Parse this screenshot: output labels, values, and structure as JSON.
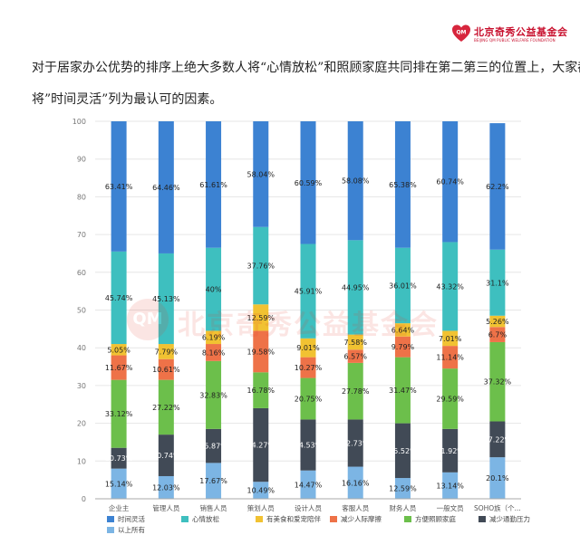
{
  "header": {
    "logo_badge": "QM",
    "logo_name": "北京奇秀公益基金会",
    "logo_subtitle": "BEIJING QM PUBLIC WELFARE FOUNDATION"
  },
  "article": {
    "line1": "对于居家办公优势的排序上绝大多数人将“心情放松”和照顾家庭共同排在第二第三的位置上，大家都",
    "line2": "将”时间灵活”列为最认可的因素。"
  },
  "watermark": {
    "badge": "QM",
    "text": "北京奇秀公益基金会"
  },
  "colors": {
    "time": "#3c82d2",
    "relax": "#3ebfbf",
    "food": "#f1c232",
    "commute_less": "#ee7248",
    "family": "#6cbf4b",
    "pressure": "#414a56",
    "all": "#7cb5e4",
    "axis": "#aaaaaa",
    "grid": "#e6e6e6"
  },
  "chart_data": {
    "type": "bar",
    "stacked": true,
    "ylim": [
      0,
      100
    ],
    "yticks": [
      0,
      10,
      20,
      30,
      40,
      50,
      60,
      70,
      80,
      90,
      100
    ],
    "categories": [
      "企业主",
      "管理人员",
      "销售人员",
      "策划人员",
      "设计人员",
      "客服人员",
      "财务人员",
      "一般文员",
      "SOHO族（个..."
    ],
    "series": [
      {
        "name": "以上所有",
        "key": "all",
        "values": [
          8,
          6,
          9.5,
          4.5,
          7.5,
          8.5,
          5.5,
          7,
          11
        ],
        "labels": [
          "15.14%",
          "12.03%",
          "17.67%",
          "10.49%",
          "14.47%",
          "16.16%",
          "12.59%",
          "13.14%",
          "20.1%"
        ]
      },
      {
        "name": "减少通勤压力",
        "key": "pressure",
        "values": [
          5.5,
          11,
          9,
          19.5,
          13.5,
          12.5,
          14.5,
          11.5,
          9.5
        ],
        "labels": [
          "10.73%",
          "20.74%",
          "15.87%",
          "34.27%",
          "24.53%",
          "22.73%",
          "25.52%",
          "21.92%",
          "17.22%"
        ]
      },
      {
        "name": "方便照顾家庭",
        "key": "family",
        "values": [
          18,
          14.5,
          18,
          9.5,
          11,
          15,
          17.5,
          16,
          21
        ],
        "labels": [
          "33.12%",
          "27.22%",
          "32.83%",
          "16.78%",
          "20.75%",
          "27.78%",
          "31.47%",
          "29.59%",
          "37.32%"
        ]
      },
      {
        "name": "减少人际摩擦",
        "key": "commute_less",
        "values": [
          6.5,
          5.5,
          4.5,
          11,
          5.5,
          3.5,
          5.5,
          6,
          4
        ],
        "labels": [
          "11.67%",
          "10.61%",
          "8.16%",
          "19.58%",
          "10.27%",
          "6.57%",
          "9.79%",
          "11.14%",
          "6.7%"
        ]
      },
      {
        "name": "有美食和爱宠陪伴",
        "key": "food",
        "values": [
          3,
          4,
          3.5,
          7,
          5,
          4,
          3.5,
          4,
          3
        ],
        "labels": [
          "5.05%",
          "7.79%",
          "6.19%",
          "12.59%",
          "9.01%",
          "7.58%",
          "6.64%",
          "7.01%",
          "5.26%"
        ]
      },
      {
        "name": "心情放松",
        "key": "relax",
        "values": [
          24.5,
          24,
          22,
          20.5,
          25,
          25,
          20,
          23.5,
          17.5
        ],
        "labels": [
          "45.74%",
          "45.13%",
          "40%",
          "37.76%",
          "45.91%",
          "44.95%",
          "36.01%",
          "43.32%",
          "31.1%"
        ]
      },
      {
        "name": "时间灵活",
        "key": "time",
        "values": [
          34.5,
          35,
          33.5,
          28,
          32.5,
          31.5,
          33.5,
          32,
          33.5
        ],
        "labels": [
          "63.41%",
          "64.46%",
          "61.61%",
          "58.04%",
          "60.59%",
          "58.08%",
          "65.38%",
          "60.74%",
          "62.2%"
        ]
      }
    ],
    "legend": [
      {
        "name": "时间灵活",
        "key": "time"
      },
      {
        "name": "心情放松",
        "key": "relax"
      },
      {
        "name": "有美食和爱宠陪伴",
        "key": "food"
      },
      {
        "name": "减少人际摩擦",
        "key": "commute_less"
      },
      {
        "name": "方便照顾家庭",
        "key": "family"
      },
      {
        "name": "减少通勤压力",
        "key": "pressure"
      },
      {
        "name": "以上所有",
        "key": "all"
      }
    ],
    "legend_position": "bottom",
    "grid": true
  }
}
